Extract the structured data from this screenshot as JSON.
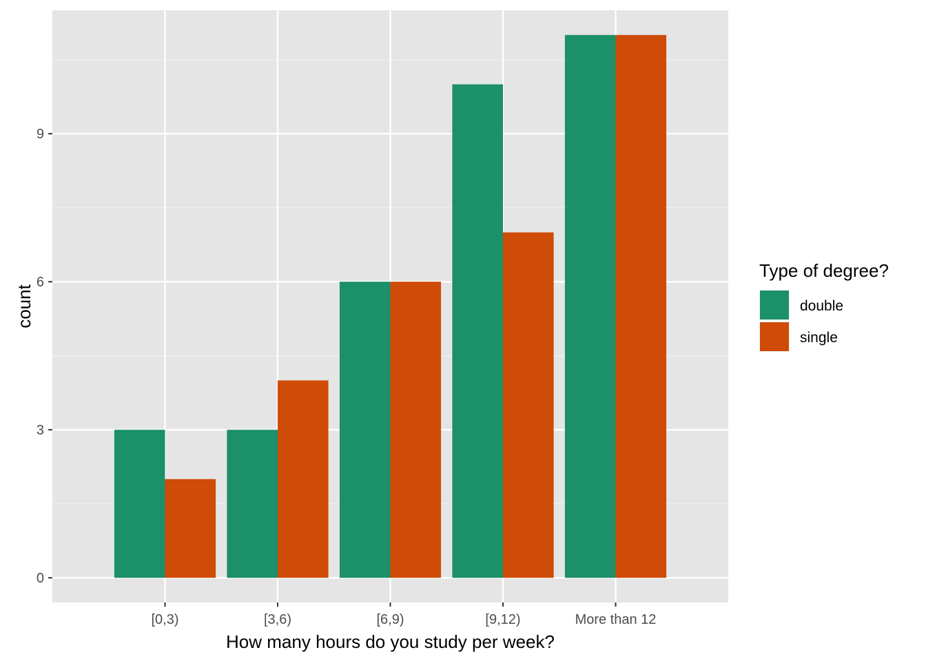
{
  "chart_data": {
    "type": "bar",
    "xlabel": "How many hours do you study per week?",
    "ylabel": "count",
    "categories": [
      "[0,3)",
      "[3,6)",
      "[6,9)",
      "[9,12)",
      "More than 12"
    ],
    "series": [
      {
        "name": "double",
        "values": [
          3,
          3,
          6,
          10,
          11
        ],
        "color": "#1B9069"
      },
      {
        "name": "single",
        "values": [
          2,
          4,
          6,
          7,
          11
        ],
        "color": "#CE4B08"
      }
    ],
    "yticks": [
      0,
      3,
      6,
      9
    ],
    "ylim": [
      -0.5,
      11.5
    ],
    "grid": true,
    "legend": {
      "title": "Type of degree?",
      "position": "right"
    }
  }
}
